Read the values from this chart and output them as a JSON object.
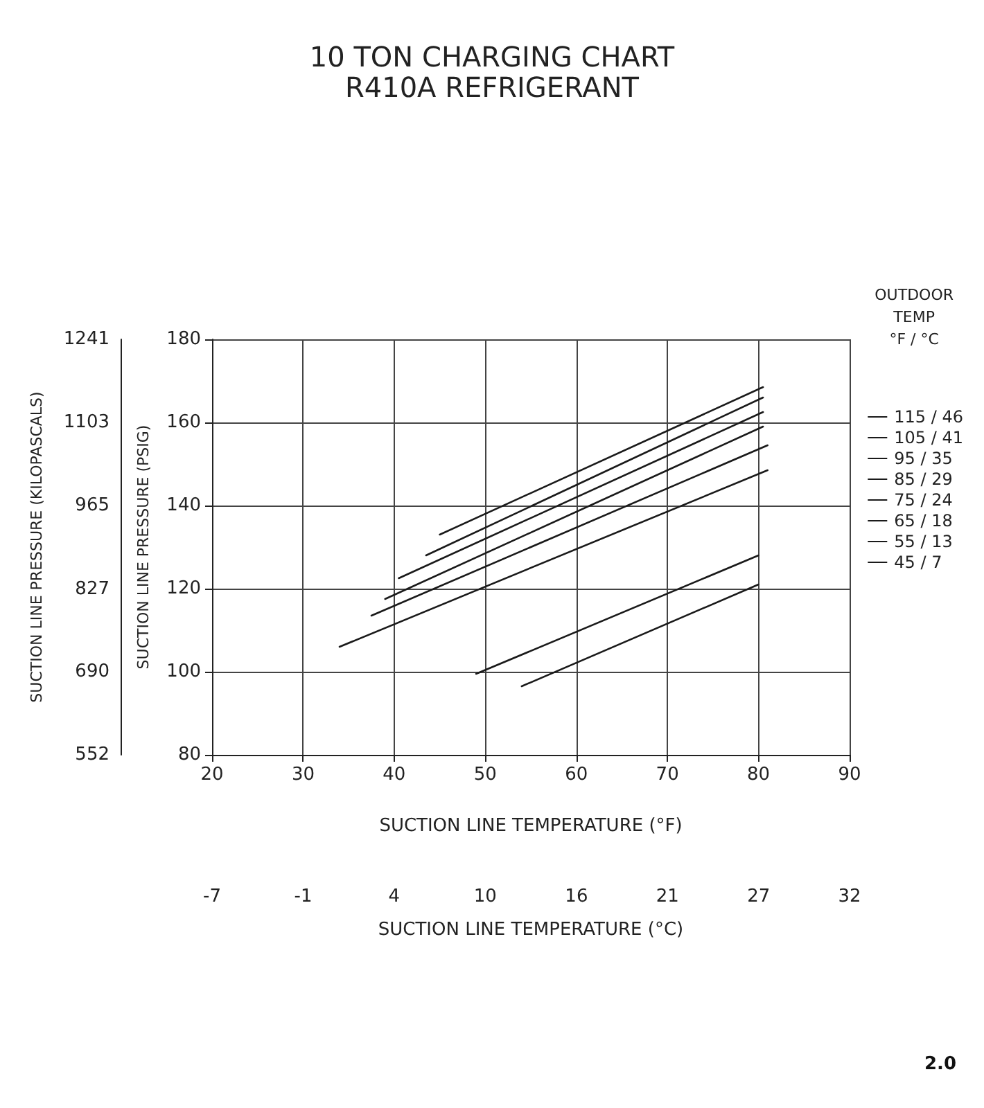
{
  "chart_data": {
    "type": "line",
    "title": "10 TON CHARGING CHART\nR410A REFRIGERANT",
    "xlabel": "SUCTION LINE TEMPERATURE (°F)",
    "ylabel": "SUCTION LINE PRESSURE (PSIG)",
    "y2label": "SUCTION LINE PRESSURE (KILOPASCALS)",
    "x2label": "SUCTION LINE TEMPERATURE (°C)",
    "legend_title": "OUTDOOR\nTEMP\n°F / °C",
    "annotations": [
      "2.0"
    ],
    "xlim": [
      20,
      90
    ],
    "xticks": [
      20,
      30,
      40,
      50,
      60,
      70,
      80,
      90
    ],
    "ylim": [
      80,
      180
    ],
    "yticks": [
      80,
      100,
      120,
      140,
      160,
      180
    ],
    "y2lim": [
      552,
      1241
    ],
    "y2ticks": [
      552,
      690,
      827,
      965,
      1103,
      1241
    ],
    "x2lim": [
      -6.67,
      32.22
    ],
    "x2ticks": [
      {
        "value": -6.67,
        "label": "-7"
      },
      {
        "value": -1.11,
        "label": "-1"
      },
      {
        "value": 4.44,
        "label": "4"
      },
      {
        "value": 10,
        "label": "10"
      },
      {
        "value": 15.56,
        "label": "16"
      },
      {
        "value": 21.11,
        "label": "21"
      },
      {
        "value": 26.67,
        "label": "27"
      },
      {
        "value": 32.22,
        "label": "32"
      }
    ],
    "grid": true,
    "legend": "right",
    "marker": "none",
    "line_style": "solid",
    "series": [
      {
        "name": "115 / 46",
        "color": "#1a1a1a",
        "x": [
          45,
          80.5
        ],
        "values": [
          133,
          168.5
        ]
      },
      {
        "name": "105 / 41",
        "color": "#1a1a1a",
        "x": [
          43.5,
          80.5
        ],
        "values": [
          128,
          166
        ]
      },
      {
        "name": "95 / 35",
        "color": "#1a1a1a",
        "x": [
          40.5,
          80.5
        ],
        "values": [
          122.5,
          162.5
        ]
      },
      {
        "name": "85 / 29",
        "color": "#1a1a1a",
        "x": [
          39,
          80.5
        ],
        "values": [
          117.5,
          159
        ]
      },
      {
        "name": "75 / 24",
        "color": "#1a1a1a",
        "x": [
          37.5,
          81
        ],
        "values": [
          113.5,
          154.5
        ]
      },
      {
        "name": "65 / 18",
        "color": "#1a1a1a",
        "x": [
          34,
          81
        ],
        "values": [
          106,
          148.5
        ]
      },
      {
        "name": "55 / 13",
        "color": "#1a1a1a",
        "x": [
          49,
          80
        ],
        "values": [
          99.5,
          128
        ]
      },
      {
        "name": "45 / 7",
        "color": "#1a1a1a",
        "x": [
          54,
          80
        ],
        "values": [
          96.5,
          121
        ]
      }
    ]
  }
}
